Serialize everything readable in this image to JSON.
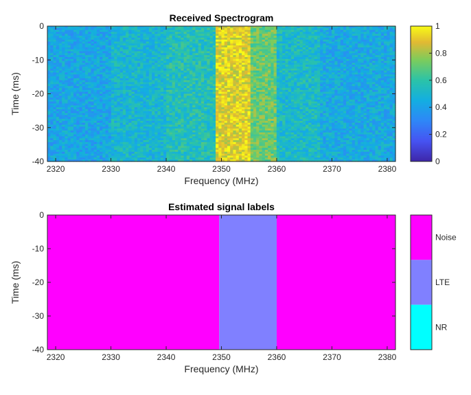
{
  "chart_data": [
    {
      "type": "heatmap",
      "title": "Received Spectrogram",
      "xlabel": "Frequency (MHz)",
      "ylabel": "Time (ms)",
      "xlim": [
        2318.5,
        2381.5
      ],
      "ylim": [
        -40,
        0
      ],
      "xticks": [
        2320,
        2330,
        2340,
        2350,
        2360,
        2370,
        2380
      ],
      "yticks": [
        0,
        -10,
        -20,
        -30,
        -40
      ],
      "colormap": "parula",
      "colorbar": {
        "range": [
          0,
          1
        ],
        "ticks": [
          0,
          0.2,
          0.4,
          0.6,
          0.8,
          1
        ]
      },
      "bands": [
        {
          "x": [
            2318.5,
            2330
          ],
          "level": 0.42
        },
        {
          "x": [
            2330,
            2340
          ],
          "level": 0.5
        },
        {
          "x": [
            2340,
            2349
          ],
          "level": 0.56
        },
        {
          "x": [
            2349,
            2355
          ],
          "level": 0.9
        },
        {
          "x": [
            2355,
            2360
          ],
          "level": 0.72
        },
        {
          "x": [
            2360,
            2368
          ],
          "level": 0.52
        },
        {
          "x": [
            2368,
            2381.5
          ],
          "level": 0.44
        }
      ]
    },
    {
      "type": "heatmap",
      "title": "Estimated signal labels",
      "xlabel": "Frequency (MHz)",
      "ylabel": "Time (ms)",
      "xlim": [
        2318.5,
        2381.5
      ],
      "ylim": [
        -40,
        0
      ],
      "xticks": [
        2320,
        2330,
        2340,
        2350,
        2360,
        2370,
        2380
      ],
      "yticks": [
        0,
        -10,
        -20,
        -30,
        -40
      ],
      "classes": [
        {
          "name": "Noise",
          "color": "#ff00ff"
        },
        {
          "name": "LTE",
          "color": "#8080ff"
        },
        {
          "name": "NR",
          "color": "#00ffff"
        }
      ],
      "regions": [
        {
          "class": "Noise",
          "x": [
            2318.5,
            2349.6
          ]
        },
        {
          "class": "LTE",
          "x": [
            2349.6,
            2360.0
          ]
        },
        {
          "class": "Noise",
          "x": [
            2360.0,
            2381.5
          ]
        }
      ]
    }
  ]
}
